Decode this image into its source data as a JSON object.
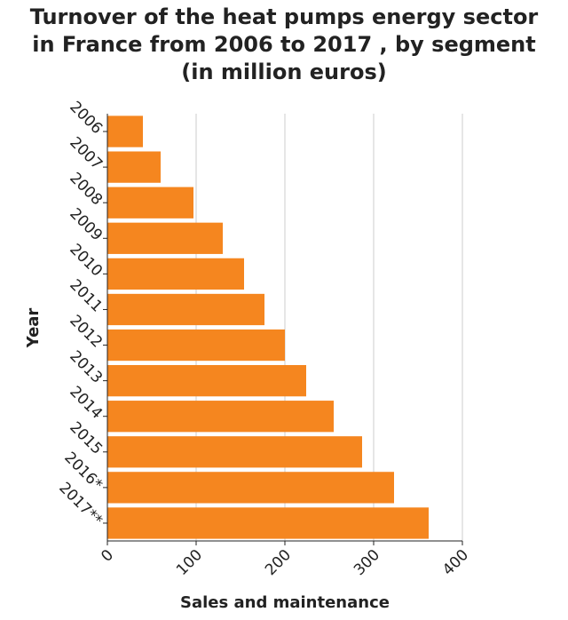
{
  "chart_data": {
    "type": "bar",
    "orientation": "horizontal",
    "title_lines": [
      "Turnover of the heat pumps energy sector",
      "in France from 2006 to 2017 , by segment",
      "(in million euros)"
    ],
    "xlabel": "Sales and maintenance",
    "ylabel": "Year",
    "categories": [
      "2006",
      "2007",
      "2008",
      "2009",
      "2010",
      "2011",
      "2012",
      "2013",
      "2014",
      "2015",
      "2016*",
      "2017**"
    ],
    "values": [
      40,
      60,
      97,
      130,
      154,
      177,
      200,
      224,
      255,
      287,
      323,
      362
    ],
    "xlim": [
      0,
      400
    ],
    "xticks": [
      "0",
      "100",
      "200",
      "300",
      "400"
    ],
    "grid": "vertical",
    "bar_color": "#f5861f",
    "grid_color": "#cccccc",
    "axis_color": "#222222"
  }
}
